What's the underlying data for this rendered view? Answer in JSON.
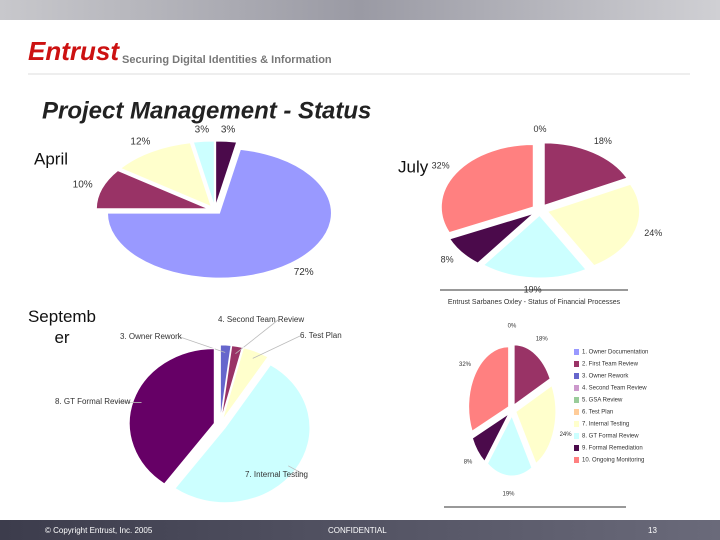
{
  "header": {
    "logo": "Entrust",
    "tagline": "Securing Digital Identities & Information"
  },
  "title": "Project Management - Status",
  "chart_data": [
    {
      "type": "pie",
      "title": "April",
      "values": [
        3,
        72,
        10,
        12,
        3
      ],
      "value_labels": [
        "3%",
        "72%",
        "10%",
        "12%",
        "3%"
      ],
      "colors": [
        "#4b0a4b",
        "#9999ff",
        "#993366",
        "#ffffcc",
        "#ccffff"
      ]
    },
    {
      "type": "pie",
      "title": "July",
      "subtitle": "Entrust Sarbanes Oxley - Status of Financial Processes",
      "values": [
        0,
        18,
        24,
        19,
        8,
        32
      ],
      "value_labels": [
        "0%",
        "18%",
        "24%",
        "19%",
        "8%",
        "32%"
      ],
      "colors": [
        "#9999ff",
        "#993366",
        "#ffffcc",
        "#ccffff",
        "#4b0a4b",
        "#ff8080"
      ]
    },
    {
      "type": "pie",
      "title": "September",
      "categories": [
        "3. Owner Rework",
        "4. Second Team Review",
        "6. Test Plan",
        "7. Internal Testing",
        "8. GT Formal Review"
      ],
      "values": [
        2,
        2,
        5,
        51,
        40
      ],
      "colors": [
        "#6666cc",
        "#993366",
        "#ffffcc",
        "#ccffff",
        "#660066"
      ]
    },
    {
      "type": "pie",
      "categories": [
        "1. Owner Documentation",
        "2. First Team Review",
        "3. Owner Rework",
        "4. Second Team Review",
        "5. GSA Review",
        "6. Test Plan",
        "7. Internal Testing",
        "8. GT Formal Review",
        "9. Formal Remediation",
        "10. Ongoing Monitoring"
      ],
      "values": [
        0,
        18,
        0,
        0,
        0,
        0,
        24,
        19,
        8,
        32
      ],
      "value_labels": [
        "0%",
        "18%",
        null,
        null,
        null,
        null,
        "24%",
        "19%",
        "8%",
        "32%"
      ],
      "colors": [
        "#9999ff",
        "#993366",
        "#6666cc",
        "#cc99cc",
        "#99cc99",
        "#ffcc99",
        "#ffffcc",
        "#ccffff",
        "#4b0a4b",
        "#ff8080"
      ]
    }
  ],
  "footer": {
    "copyright": "© Copyright Entrust, Inc. 2005",
    "confidential": "CONFIDENTIAL",
    "page": "13"
  }
}
